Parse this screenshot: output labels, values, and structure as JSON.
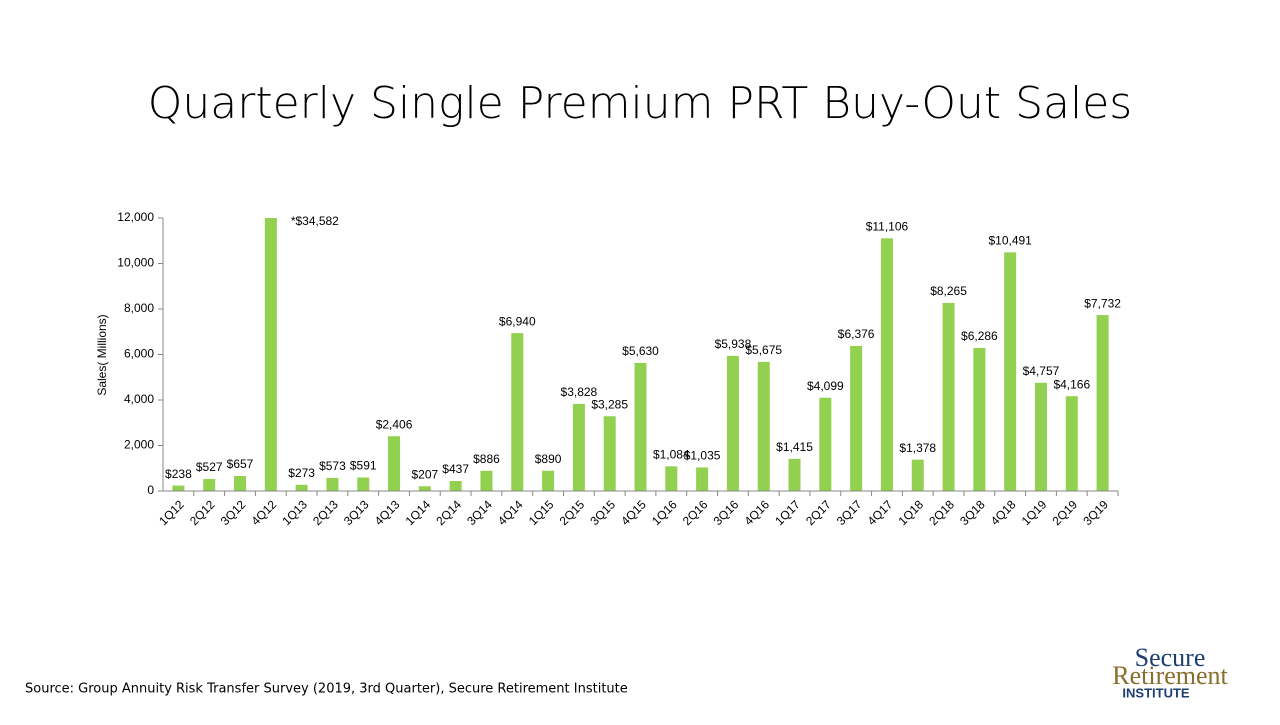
{
  "chart_data": {
    "type": "bar",
    "title": "Quarterly Single Premium PRT Buy-Out Sales",
    "y_label": "Sales( Millions)",
    "categories": [
      "1Q12",
      "2Q12",
      "3Q12",
      "4Q12",
      "1Q13",
      "2Q13",
      "3Q13",
      "4Q13",
      "1Q14",
      "2Q14",
      "3Q14",
      "4Q14",
      "1Q15",
      "2Q15",
      "3Q15",
      "4Q15",
      "1Q16",
      "2Q16",
      "3Q16",
      "4Q16",
      "1Q17",
      "2Q17",
      "3Q17",
      "4Q17",
      "1Q18",
      "2Q18",
      "3Q18",
      "4Q18",
      "1Q19",
      "2Q19",
      "3Q19"
    ],
    "values": [
      238,
      527,
      657,
      34582,
      273,
      573,
      591,
      2406,
      207,
      437,
      886,
      6940,
      890,
      3828,
      3285,
      5630,
      1084,
      1035,
      5938,
      5675,
      1415,
      4099,
      6376,
      11106,
      1378,
      8265,
      6286,
      10491,
      4757,
      4166,
      7732
    ],
    "value_labels": [
      "$238",
      "$527",
      "$657",
      "*$34,582",
      "$273",
      "$573",
      "$591",
      "$2,406",
      "$207",
      "$437",
      "$886",
      "$6,940",
      "$890",
      "$3,828",
      "$3,285",
      "$5,630",
      "$1,084",
      "$1,035",
      "$5,938",
      "$5,675",
      "$1,415",
      "$4,099",
      "$6,376",
      "$11,106",
      "$1,378",
      "$8,265",
      "$6,286",
      "$10,491",
      "$4,757",
      "$4,166",
      "$7,732"
    ],
    "color": "#92d050",
    "ylim": [
      0,
      12000
    ],
    "yticks": [
      0,
      {
        "value": 2000,
        "label": "2,000"
      },
      {
        "value": 4000,
        "label": "4,000"
      },
      {
        "value": 6000,
        "label": "6,000"
      },
      {
        "value": 8000,
        "label": "8,000"
      },
      {
        "value": 10000,
        "label": "10,000"
      },
      {
        "value": 12000,
        "label": "12,000"
      }
    ],
    "grid": false
  },
  "source": "Source: Group Annuity Risk Transfer Survey (2019, 3rd Quarter), Secure Retirement Institute",
  "logo": {
    "line1": "Secure",
    "line2": "Retirement",
    "line3": "INSTITUTE"
  }
}
